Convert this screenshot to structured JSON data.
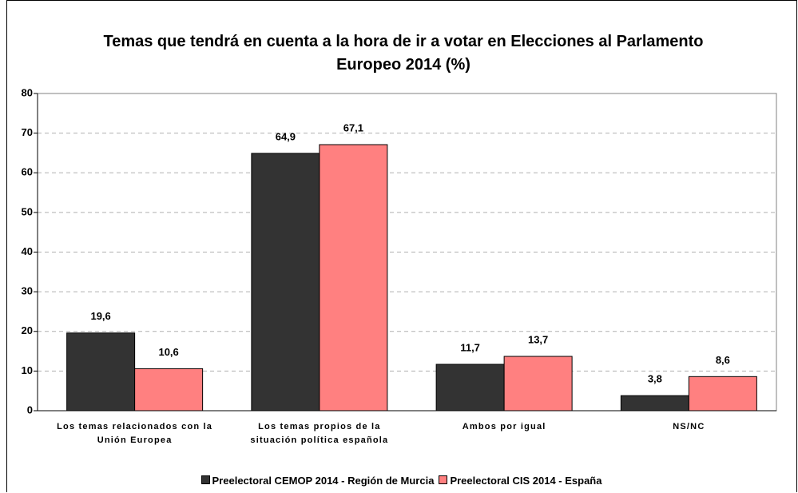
{
  "chart_data": {
    "type": "bar",
    "title": "Temas que tendrá en cuenta a la hora de ir a votar en Elecciones al Parlamento Europeo 2014 (%)",
    "categories": [
      "Los temas relacionados con la Unión Europea",
      "Los temas propios de la situación política española",
      "Ambos por igual",
      "NS/NC"
    ],
    "series": [
      {
        "name": "Preelectoral CEMOP 2014 - Región de Murcia",
        "color": "#333333",
        "values": [
          19.6,
          64.9,
          11.7,
          3.8
        ],
        "value_labels": [
          "19,6",
          "64,9",
          "11,7",
          "3,8"
        ]
      },
      {
        "name": "Preelectoral CIS 2014 - España",
        "color": "#ff8080",
        "values": [
          10.6,
          67.1,
          13.7,
          8.6
        ],
        "value_labels": [
          "10,6",
          "67,1",
          "13,7",
          "8,6"
        ]
      }
    ],
    "ylim": [
      0,
      80
    ],
    "yticks": [
      0,
      10,
      20,
      30,
      40,
      50,
      60,
      70,
      80
    ],
    "grid": true,
    "legend": "bottom"
  }
}
